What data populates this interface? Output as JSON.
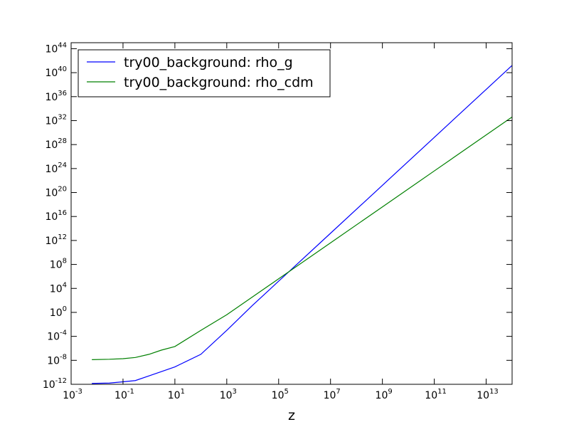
{
  "chart_data": {
    "type": "line",
    "title": "",
    "xlabel": "z",
    "ylabel": "",
    "xscale": "log",
    "yscale": "log",
    "xlim": [
      0.001,
      100000000000000.0
    ],
    "ylim": [
      1e-12,
      1e+45
    ],
    "grid": false,
    "legend": "top-left",
    "x_ticks": [
      {
        "base": "10",
        "exp": "-3"
      },
      {
        "base": "10",
        "exp": "-1"
      },
      {
        "base": "10",
        "exp": "1"
      },
      {
        "base": "10",
        "exp": "3"
      },
      {
        "base": "10",
        "exp": "5"
      },
      {
        "base": "10",
        "exp": "7"
      },
      {
        "base": "10",
        "exp": "9"
      },
      {
        "base": "10",
        "exp": "11"
      },
      {
        "base": "10",
        "exp": "13"
      }
    ],
    "y_ticks": [
      {
        "base": "10",
        "exp": "-12"
      },
      {
        "base": "10",
        "exp": "-8"
      },
      {
        "base": "10",
        "exp": "-4"
      },
      {
        "base": "10",
        "exp": "0"
      },
      {
        "base": "10",
        "exp": "4"
      },
      {
        "base": "10",
        "exp": "8"
      },
      {
        "base": "10",
        "exp": "12"
      },
      {
        "base": "10",
        "exp": "16"
      },
      {
        "base": "10",
        "exp": "20"
      },
      {
        "base": "10",
        "exp": "24"
      },
      {
        "base": "10",
        "exp": "28"
      },
      {
        "base": "10",
        "exp": "32"
      },
      {
        "base": "10",
        "exp": "36"
      },
      {
        "base": "10",
        "exp": "40"
      },
      {
        "base": "10",
        "exp": "44"
      }
    ],
    "series": [
      {
        "name": "try00_background: rho_g",
        "color": "#0000ff",
        "x": [
          0.0063,
          0.03,
          0.1,
          0.3,
          1,
          3,
          10,
          100,
          1000,
          10000,
          100000,
          10000000.0,
          1000000000.0,
          100000000000.0,
          10000000000000.0,
          100000000000000.0
        ],
        "y": [
          1.4e-12,
          1.6e-12,
          2.6e-12,
          4.2e-12,
          2.5e-11,
          1.3e-10,
          8e-10,
          1e-07,
          0.001,
          16,
          160000.0,
          16000000000000.0,
          1.6e+21,
          1.6e+29,
          1.6e+37,
          1.6e+41
        ]
      },
      {
        "name": "try00_background: rho_cdm",
        "color": "#008000",
        "x": [
          0.0063,
          0.03,
          0.1,
          0.3,
          1,
          3,
          10,
          100,
          1000,
          10000,
          100000,
          10000000.0,
          1000000000.0,
          100000000000.0,
          10000000000000.0,
          100000000000000.0
        ],
        "y": [
          1.3e-08,
          1.5e-08,
          1.9e-08,
          3e-08,
          1e-07,
          5e-07,
          2e-06,
          0.001,
          0.4,
          400,
          400000.0,
          400000000000.0,
          4e+17,
          4e+23,
          4e+29,
          4e+32
        ]
      }
    ]
  }
}
